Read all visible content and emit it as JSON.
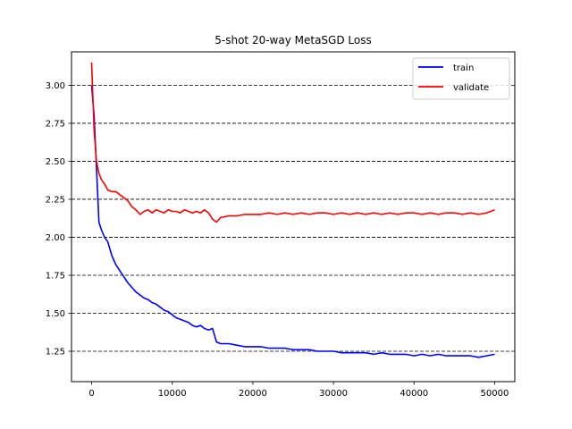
{
  "chart_data": {
    "type": "line",
    "title": "5-shot 20-way MetaSGD Loss",
    "xlabel": "",
    "ylabel": "",
    "xlim": [
      -2500,
      52500
    ],
    "ylim": [
      1.05,
      3.22
    ],
    "xticks": [
      0,
      10000,
      20000,
      30000,
      40000,
      50000
    ],
    "xtick_labels": [
      "0",
      "10000",
      "20000",
      "30000",
      "40000",
      "50000"
    ],
    "yticks": [
      1.25,
      1.5,
      1.75,
      2.0,
      2.25,
      2.5,
      2.75,
      3.0
    ],
    "ytick_labels": [
      "1.25",
      "1.50",
      "1.75",
      "2.00",
      "2.25",
      "2.50",
      "2.75",
      "3.00"
    ],
    "grid": "horizontal dashed",
    "legend_position": "top-right",
    "series": [
      {
        "name": "train",
        "color": "#0000ff",
        "x": [
          0,
          300,
          600,
          900,
          1200,
          1600,
          2000,
          2500,
          3000,
          3500,
          4000,
          4500,
          5000,
          5500,
          6000,
          6500,
          7000,
          7500,
          8000,
          8500,
          9000,
          9500,
          10000,
          10500,
          11000,
          11500,
          12000,
          12500,
          13000,
          13500,
          14000,
          14500,
          15000,
          15500,
          16000,
          17000,
          18000,
          19000,
          20000,
          21000,
          22000,
          23000,
          24000,
          25000,
          26000,
          27000,
          28000,
          29000,
          30000,
          31000,
          32000,
          33000,
          34000,
          35000,
          36000,
          37000,
          38000,
          39000,
          40000,
          41000,
          42000,
          43000,
          44000,
          45000,
          46000,
          47000,
          48000,
          49000,
          50000
        ],
        "y": [
          3.0,
          2.8,
          2.45,
          2.1,
          2.05,
          2.0,
          1.97,
          1.88,
          1.82,
          1.78,
          1.74,
          1.7,
          1.67,
          1.64,
          1.62,
          1.6,
          1.59,
          1.57,
          1.56,
          1.54,
          1.52,
          1.51,
          1.49,
          1.47,
          1.46,
          1.45,
          1.44,
          1.42,
          1.41,
          1.42,
          1.4,
          1.39,
          1.4,
          1.31,
          1.3,
          1.3,
          1.29,
          1.28,
          1.28,
          1.28,
          1.27,
          1.27,
          1.27,
          1.26,
          1.26,
          1.26,
          1.25,
          1.25,
          1.25,
          1.24,
          1.24,
          1.24,
          1.24,
          1.23,
          1.24,
          1.23,
          1.23,
          1.23,
          1.22,
          1.23,
          1.22,
          1.23,
          1.22,
          1.22,
          1.22,
          1.22,
          1.21,
          1.22,
          1.23
        ]
      },
      {
        "name": "validate",
        "color": "#ff0000",
        "x": [
          0,
          300,
          600,
          900,
          1200,
          1600,
          2000,
          2500,
          3000,
          3500,
          4000,
          4500,
          5000,
          5500,
          6000,
          6500,
          7000,
          7500,
          8000,
          8500,
          9000,
          9500,
          10000,
          10500,
          11000,
          11500,
          12000,
          12500,
          13000,
          13500,
          14000,
          14500,
          15000,
          15500,
          16000,
          17000,
          18000,
          19000,
          20000,
          21000,
          22000,
          23000,
          24000,
          25000,
          26000,
          27000,
          28000,
          29000,
          30000,
          31000,
          32000,
          33000,
          34000,
          35000,
          36000,
          37000,
          38000,
          39000,
          40000,
          41000,
          42000,
          43000,
          44000,
          45000,
          46000,
          47000,
          48000,
          49000,
          50000
        ],
        "y": [
          3.15,
          2.7,
          2.5,
          2.42,
          2.38,
          2.35,
          2.31,
          2.3,
          2.3,
          2.28,
          2.26,
          2.24,
          2.2,
          2.18,
          2.15,
          2.17,
          2.18,
          2.16,
          2.18,
          2.17,
          2.16,
          2.18,
          2.17,
          2.17,
          2.16,
          2.18,
          2.17,
          2.16,
          2.17,
          2.16,
          2.18,
          2.16,
          2.12,
          2.1,
          2.13,
          2.14,
          2.14,
          2.15,
          2.15,
          2.15,
          2.16,
          2.15,
          2.16,
          2.15,
          2.16,
          2.15,
          2.16,
          2.16,
          2.15,
          2.16,
          2.15,
          2.16,
          2.15,
          2.16,
          2.15,
          2.16,
          2.15,
          2.16,
          2.16,
          2.15,
          2.16,
          2.15,
          2.16,
          2.16,
          2.15,
          2.16,
          2.15,
          2.16,
          2.18
        ]
      }
    ]
  }
}
